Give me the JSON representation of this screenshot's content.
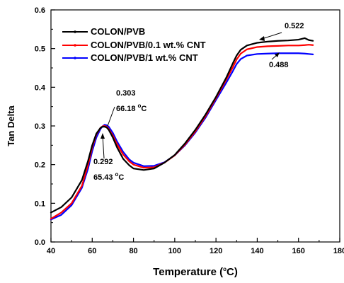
{
  "chart_data": {
    "type": "line",
    "xlabel_main": "Temperature (",
    "xlabel_sup": "o",
    "xlabel_end": "C)",
    "ylabel": "Tan Delta",
    "xlim": [
      40,
      180
    ],
    "ylim": [
      0.0,
      0.6
    ],
    "x_ticks": [
      "40",
      "60",
      "80",
      "100",
      "120",
      "140",
      "160",
      "180"
    ],
    "y_ticks": [
      "0.0",
      "0.1",
      "0.2",
      "0.3",
      "0.4",
      "0.5",
      "0.6"
    ],
    "legend_placement": "top-left",
    "grid": false,
    "series": [
      {
        "name": "COLON/PVB",
        "color": "#000000",
        "x": [
          40,
          45,
          50,
          55,
          58,
          60,
          62,
          64,
          65,
          66,
          67,
          68,
          70,
          72,
          75,
          78,
          80,
          85,
          90,
          95,
          100,
          105,
          110,
          115,
          120,
          125,
          128,
          130,
          132,
          135,
          140,
          145,
          150,
          155,
          160,
          163,
          165,
          167
        ],
        "y": [
          0.076,
          0.09,
          0.115,
          0.16,
          0.21,
          0.25,
          0.28,
          0.295,
          0.298,
          0.298,
          0.296,
          0.29,
          0.27,
          0.245,
          0.215,
          0.198,
          0.19,
          0.186,
          0.19,
          0.205,
          0.225,
          0.255,
          0.29,
          0.33,
          0.375,
          0.425,
          0.46,
          0.482,
          0.497,
          0.508,
          0.515,
          0.518,
          0.52,
          0.521,
          0.523,
          0.527,
          0.522,
          0.52
        ]
      },
      {
        "name": "COLON/PVB/0.1 wt.% CNT",
        "color": "#ff0000",
        "x": [
          40,
          45,
          50,
          55,
          58,
          60,
          62,
          64,
          65,
          66,
          67,
          68,
          70,
          72,
          75,
          78,
          80,
          85,
          90,
          95,
          100,
          105,
          110,
          115,
          120,
          125,
          128,
          130,
          132,
          135,
          140,
          145,
          150,
          155,
          160,
          163,
          165,
          167
        ],
        "y": [
          0.06,
          0.076,
          0.1,
          0.145,
          0.2,
          0.245,
          0.278,
          0.295,
          0.299,
          0.3,
          0.298,
          0.292,
          0.275,
          0.253,
          0.226,
          0.208,
          0.2,
          0.192,
          0.193,
          0.205,
          0.224,
          0.252,
          0.286,
          0.326,
          0.372,
          0.42,
          0.45,
          0.472,
          0.487,
          0.498,
          0.504,
          0.506,
          0.507,
          0.508,
          0.508,
          0.509,
          0.51,
          0.509
        ]
      },
      {
        "name": "COLON/PVB/1 wt.% CNT",
        "color": "#0000ff",
        "x": [
          40,
          45,
          50,
          55,
          58,
          60,
          62,
          64,
          65,
          66,
          67,
          68,
          70,
          72,
          75,
          78,
          80,
          85,
          90,
          95,
          100,
          105,
          110,
          115,
          120,
          125,
          128,
          130,
          132,
          135,
          140,
          145,
          150,
          155,
          160,
          163,
          165,
          167
        ],
        "y": [
          0.058,
          0.07,
          0.095,
          0.14,
          0.19,
          0.235,
          0.27,
          0.292,
          0.299,
          0.303,
          0.302,
          0.298,
          0.282,
          0.26,
          0.233,
          0.213,
          0.205,
          0.196,
          0.197,
          0.206,
          0.224,
          0.25,
          0.283,
          0.322,
          0.367,
          0.412,
          0.44,
          0.46,
          0.473,
          0.482,
          0.486,
          0.487,
          0.488,
          0.488,
          0.488,
          0.487,
          0.486,
          0.485
        ]
      }
    ],
    "annotations": [
      {
        "value": "0.303",
        "temp": "66.18",
        "deg": "o",
        "unit": "C"
      },
      {
        "value": "0.292",
        "temp": "65.43",
        "deg": "o",
        "unit": "C"
      },
      {
        "value": "0.522"
      },
      {
        "value": "0.488"
      }
    ]
  }
}
